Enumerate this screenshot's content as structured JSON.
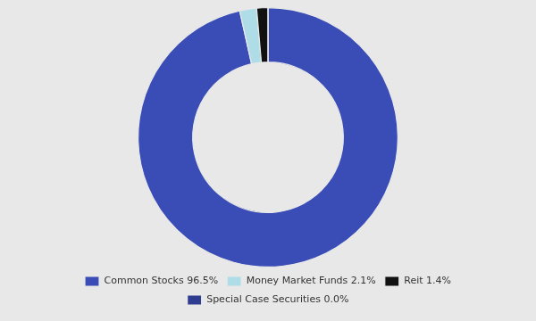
{
  "chart_data": {
    "type": "doughnut",
    "categories": [
      "Common Stocks 96.5%",
      "Money Market Funds 2.1%",
      "Reit 1.4%",
      "Special Case Securities 0.0%"
    ],
    "values": [
      96.5,
      2.1,
      1.4,
      0.0001
    ],
    "colors": [
      "#3a4db7",
      "#aedde8",
      "#111111",
      "#2e3d8f"
    ],
    "legend": "bottom"
  }
}
